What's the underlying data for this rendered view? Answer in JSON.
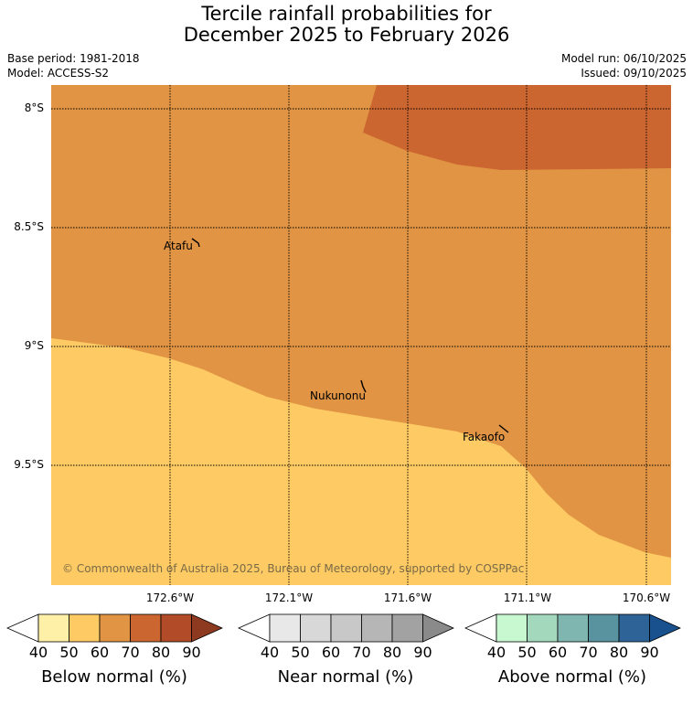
{
  "title_line1": "Tercile rainfall probabilities for",
  "title_line2": "December 2025 to February 2026",
  "base_period": "Base period: 1981-2018",
  "model": "Model: ACCESS-S2",
  "model_run": "Model run: 06/10/2025",
  "issued": "Issued: 09/10/2025",
  "map": {
    "lat_labels": [
      "8°S",
      "8.5°S",
      "9°S",
      "9.5°S"
    ],
    "lon_labels": [
      "172.6°W",
      "172.1°W",
      "171.6°W",
      "171.1°W",
      "170.6°W"
    ],
    "places": [
      "Atafu",
      "Nukunonu",
      "Fakaofo"
    ],
    "regions": [
      {
        "category": "Below normal",
        "probability_band": "60-70",
        "color": "#e09444"
      },
      {
        "category": "Below normal",
        "probability_band": "50-60",
        "color": "#fdca63"
      },
      {
        "category": "Below normal",
        "probability_band": "70-80",
        "color": "#cc6630"
      }
    ],
    "copyright": "© Commonwealth of Australia 2025, Bureau of Meteorology, supported by COSPPac"
  },
  "colorbars": [
    {
      "title": "Below normal (%)",
      "ticks": [
        "40",
        "50",
        "60",
        "70",
        "80",
        "90"
      ],
      "colors": [
        "#ffffff",
        "#fff0a8",
        "#fdca63",
        "#e09444",
        "#cc6630",
        "#b14b28",
        "#8e3a20"
      ]
    },
    {
      "title": "Near normal (%)",
      "ticks": [
        "40",
        "50",
        "60",
        "70",
        "80",
        "90"
      ],
      "colors": [
        "#ffffff",
        "#e8e8e8",
        "#d8d8d8",
        "#c8c8c8",
        "#b6b6b6",
        "#a2a2a2",
        "#8a8a8a"
      ]
    },
    {
      "title": "Above normal (%)",
      "ticks": [
        "40",
        "50",
        "60",
        "70",
        "80",
        "90"
      ],
      "colors": [
        "#ffffff",
        "#c8f8d0",
        "#a4d8bd",
        "#80b6b0",
        "#5a93a0",
        "#2d6396",
        "#19508e"
      ]
    }
  ]
}
